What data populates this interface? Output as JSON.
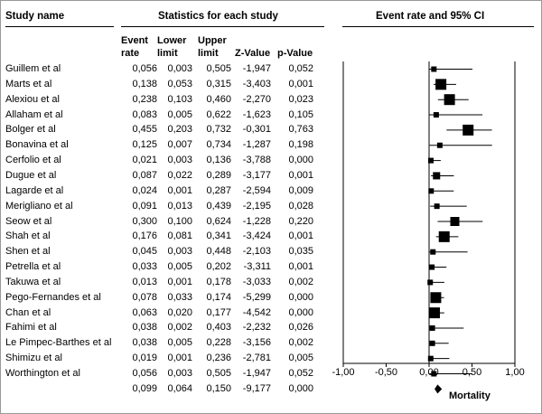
{
  "headers": {
    "study_name": "Study name",
    "statistics": "Statistics for each study",
    "event_rate_ci": "Event rate and 95% CI",
    "col_event_rate": [
      "Event",
      "rate"
    ],
    "col_lower": [
      "Lower",
      "limit"
    ],
    "col_upper": [
      "Upper",
      "limit"
    ],
    "col_z": "Z-Value",
    "col_p": "p-Value"
  },
  "chart_data": {
    "type": "forest",
    "xlabel": "Mortality",
    "xlim": [
      -1.0,
      1.0
    ],
    "ticks": [
      -1.0,
      -0.5,
      0.0,
      0.5,
      1.0
    ],
    "tick_labels": [
      "-1,00",
      "-0,50",
      "0,00",
      "0,50",
      "1,00"
    ],
    "studies": [
      {
        "name": "Guillem et al",
        "rate": "0,056",
        "lower": "0,003",
        "upper": "0,505",
        "z": "-1,947",
        "p": "0,052",
        "r": 0.056,
        "lo": 0.003,
        "hi": 0.505,
        "w": 3
      },
      {
        "name": "Marts et al",
        "rate": "0,138",
        "lower": "0,053",
        "upper": "0,315",
        "z": "-3,403",
        "p": "0,001",
        "r": 0.138,
        "lo": 0.053,
        "hi": 0.315,
        "w": 6
      },
      {
        "name": "Alexiou et al",
        "rate": "0,238",
        "lower": "0,103",
        "upper": "0,460",
        "z": "-2,270",
        "p": "0,023",
        "r": 0.238,
        "lo": 0.103,
        "hi": 0.46,
        "w": 6
      },
      {
        "name": "Allaham et al",
        "rate": "0,083",
        "lower": "0,005",
        "upper": "0,622",
        "z": "-1,623",
        "p": "0,105",
        "r": 0.083,
        "lo": 0.005,
        "hi": 0.622,
        "w": 3
      },
      {
        "name": "Bolger et al",
        "rate": "0,455",
        "lower": "0,203",
        "upper": "0,732",
        "z": "-0,301",
        "p": "0,763",
        "r": 0.455,
        "lo": 0.203,
        "hi": 0.732,
        "w": 6
      },
      {
        "name": "Bonavina et al",
        "rate": "0,125",
        "lower": "0,007",
        "upper": "0,734",
        "z": "-1,287",
        "p": "0,198",
        "r": 0.125,
        "lo": 0.007,
        "hi": 0.734,
        "w": 3
      },
      {
        "name": "Cerfolio et al",
        "rate": "0,021",
        "lower": "0,003",
        "upper": "0,136",
        "z": "-3,788",
        "p": "0,000",
        "r": 0.021,
        "lo": 0.003,
        "hi": 0.136,
        "w": 3
      },
      {
        "name": "Dugue et al",
        "rate": "0,087",
        "lower": "0,022",
        "upper": "0,289",
        "z": "-3,177",
        "p": "0,001",
        "r": 0.087,
        "lo": 0.022,
        "hi": 0.289,
        "w": 4
      },
      {
        "name": "Lagarde et al",
        "rate": "0,024",
        "lower": "0,001",
        "upper": "0,287",
        "z": "-2,594",
        "p": "0,009",
        "r": 0.024,
        "lo": 0.001,
        "hi": 0.287,
        "w": 3
      },
      {
        "name": "Merigliano et al",
        "rate": "0,091",
        "lota": "",
        "lower": "0,013",
        "upper": "0,439",
        "z": "-2,195",
        "p": "0,028",
        "r": 0.091,
        "lo": 0.013,
        "hi": 0.439,
        "w": 3
      },
      {
        "name": "Seow et al",
        "rate": "0,300",
        "lower": "0,100",
        "upper": "0,624",
        "z": "-1,228",
        "p": "0,220",
        "r": 0.3,
        "lo": 0.1,
        "hi": 0.624,
        "w": 5
      },
      {
        "name": "Shah et al",
        "rate": "0,176",
        "lower": "0,081",
        "upper": "0,341",
        "z": "-3,424",
        "p": "0,001",
        "r": 0.176,
        "lo": 0.081,
        "hi": 0.341,
        "w": 6
      },
      {
        "name": "Shen et al",
        "rate": "0,045",
        "lower": "0,003",
        "upper": "0,448",
        "z": "-2,103",
        "p": "0,035",
        "r": 0.045,
        "lo": 0.003,
        "hi": 0.448,
        "w": 3
      },
      {
        "name": "Petrella et al",
        "rate": "0,033",
        "lower": "0,005",
        "upper": "0,202",
        "z": "-3,311",
        "p": "0,001",
        "r": 0.033,
        "lo": 0.005,
        "hi": 0.202,
        "w": 3
      },
      {
        "name": "Takuwa et al",
        "rate": "0,013",
        "lower": "0,001",
        "upper": "0,178",
        "z": "-3,033",
        "p": "0,002",
        "r": 0.013,
        "lo": 0.001,
        "hi": 0.178,
        "w": 3
      },
      {
        "name": "Pego-Fernandes et al",
        "rate": "0,078",
        "lower": "0,033",
        "upper": "0,174",
        "z": "-5,299",
        "p": "0,000",
        "r": 0.078,
        "lo": 0.033,
        "hi": 0.174,
        "w": 6
      },
      {
        "name": "Chan et al",
        "rate": "0,063",
        "lower": "0,020",
        "upper": "0,177",
        "z": "-4,542",
        "p": "0,000",
        "r": 0.063,
        "lo": 0.02,
        "hi": 0.177,
        "w": 6
      },
      {
        "name": "Fahimi et al",
        "rate": "0,038",
        "lower": "0,002",
        "upper": "0,403",
        "z": "-2,232",
        "p": "0,026",
        "r": 0.038,
        "lo": 0.002,
        "hi": 0.403,
        "w": 3
      },
      {
        "name": "Le Pimpec-Barthes et al",
        "rate": "0,038",
        "lower": "0,005",
        "upper": "0,228",
        "z": "-3,156",
        "p": "0,002",
        "r": 0.038,
        "lo": 0.005,
        "hi": 0.228,
        "w": 3
      },
      {
        "name": "Shimizu et al",
        "rate": "0,019",
        "lower": "0,001",
        "upper": "0,236",
        "z": "-2,781",
        "p": "0,005",
        "r": 0.019,
        "lo": 0.001,
        "hi": 0.236,
        "w": 3
      },
      {
        "name": "Worthington et al",
        "rate": "0,056",
        "lower": "0,003",
        "upper": "0,505",
        "z": "-1,947",
        "p": "0,052",
        "r": 0.056,
        "lo": 0.003,
        "hi": 0.505,
        "w": 3
      }
    ],
    "summary": {
      "rate": "0,099",
      "lower": "0,064",
      "upper": "0,150",
      "z": "-9,177",
      "p": "0,000",
      "r": 0.099,
      "lo": 0.064,
      "hi": 0.15
    }
  }
}
